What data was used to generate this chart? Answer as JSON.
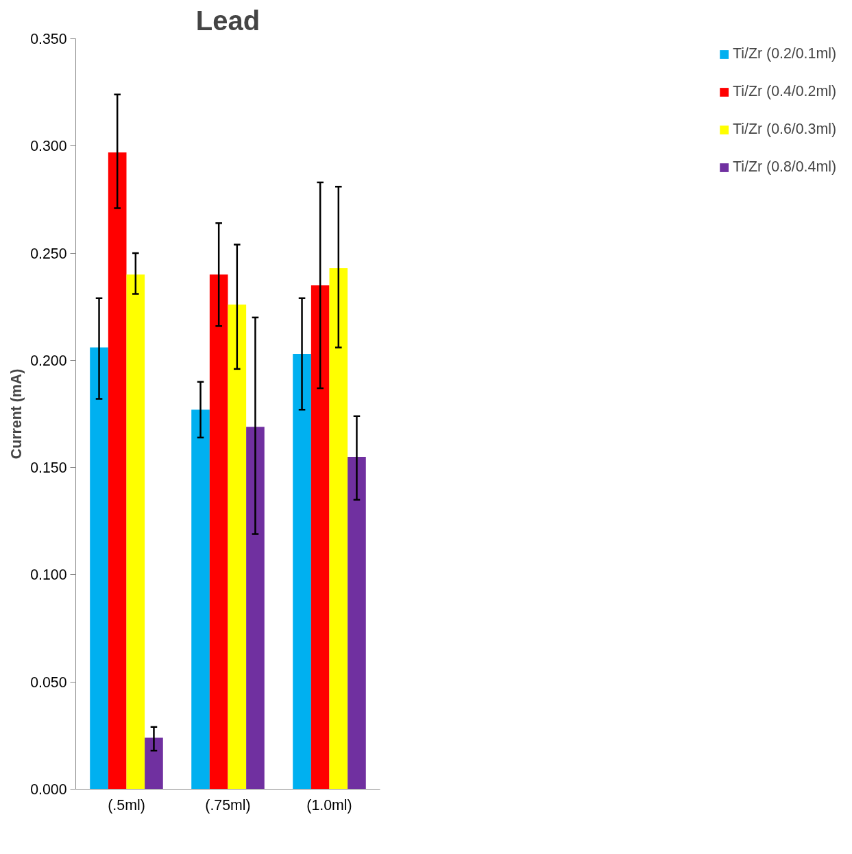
{
  "chart_data": {
    "type": "bar",
    "title": "Lead",
    "ylabel": "Current (mA)",
    "categories": [
      "(.5ml)",
      "(.75ml)",
      "(1.0ml)"
    ],
    "ylim": [
      0,
      0.35
    ],
    "yticks": [
      {
        "value": 0,
        "label": "0.000"
      },
      {
        "value": 0.05,
        "label": "0.050"
      },
      {
        "value": 0.1,
        "label": "0.100"
      },
      {
        "value": 0.15,
        "label": "0.150"
      },
      {
        "value": 0.2,
        "label": "0.200"
      },
      {
        "value": 0.25,
        "label": "0.250"
      },
      {
        "value": 0.3,
        "label": "0.300"
      },
      {
        "value": 0.35,
        "label": "0.350"
      }
    ],
    "grid": false,
    "legend": "right",
    "series": [
      {
        "name": "Ti/Zr (0.2/0.1ml)",
        "color": "#00b0f0",
        "values": [
          0.206,
          0.177,
          0.203
        ],
        "errors": [
          [
            0.182,
            0.229
          ],
          [
            0.164,
            0.19
          ],
          [
            0.177,
            0.229
          ]
        ]
      },
      {
        "name": "Ti/Zr (0.4/0.2ml)",
        "color": "#ff0000",
        "values": [
          0.297,
          0.24,
          0.235
        ],
        "errors": [
          [
            0.271,
            0.324
          ],
          [
            0.216,
            0.264
          ],
          [
            0.187,
            0.283
          ]
        ]
      },
      {
        "name": "Ti/Zr (0.6/0.3ml)",
        "color": "#ffff00",
        "values": [
          0.24,
          0.226,
          0.243
        ],
        "errors": [
          [
            0.231,
            0.25
          ],
          [
            0.196,
            0.254
          ],
          [
            0.206,
            0.281
          ]
        ]
      },
      {
        "name": "Ti/Zr (0.8/0.4ml)",
        "color": "#7030a0",
        "values": [
          0.024,
          0.169,
          0.155
        ],
        "errors": [
          [
            0.018,
            0.029
          ],
          [
            0.119,
            0.22
          ],
          [
            0.135,
            0.174
          ]
        ]
      }
    ]
  }
}
